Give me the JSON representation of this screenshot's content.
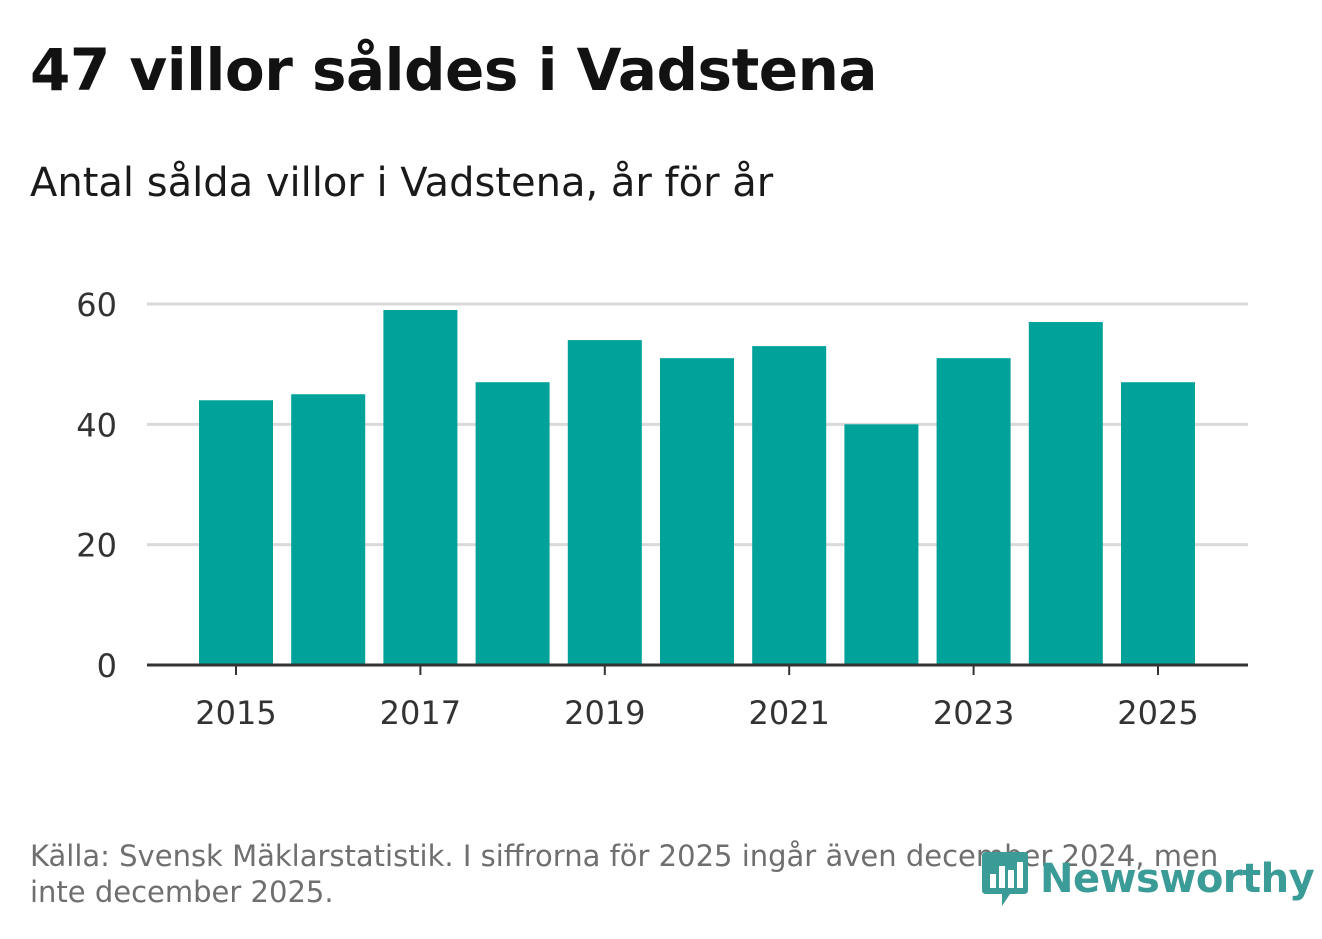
{
  "title": "47 villor såldes i Vadstena",
  "subtitle": "Antal sålda villor i Vadstena, år för år",
  "source": "Källa: Svensk Mäklarstatistik. I siffrorna för 2025 ingår även december 2024, men inte december 2025.",
  "brand": {
    "name": "Newsworthy",
    "color": "#3b9b96",
    "icon": "newsworthy-logo-icon"
  },
  "colors": {
    "bar": "#00a29a",
    "grid": "#d9d9d9",
    "axis": "#333333",
    "tick_text": "#333333"
  },
  "chart_data": {
    "type": "bar",
    "title": "Antal sålda villor i Vadstena, år för år",
    "xlabel": "",
    "ylabel": "",
    "categories": [
      "2015",
      "2016",
      "2017",
      "2018",
      "2019",
      "2020",
      "2021",
      "2022",
      "2023",
      "2024",
      "2025"
    ],
    "values": [
      44,
      45,
      59,
      47,
      54,
      51,
      53,
      40,
      51,
      57,
      47
    ],
    "x_tick_labels": [
      "2015",
      "2017",
      "2019",
      "2021",
      "2023",
      "2025"
    ],
    "y_ticks": [
      0,
      20,
      40,
      60
    ],
    "ylim": [
      0,
      60
    ],
    "grid": true
  }
}
